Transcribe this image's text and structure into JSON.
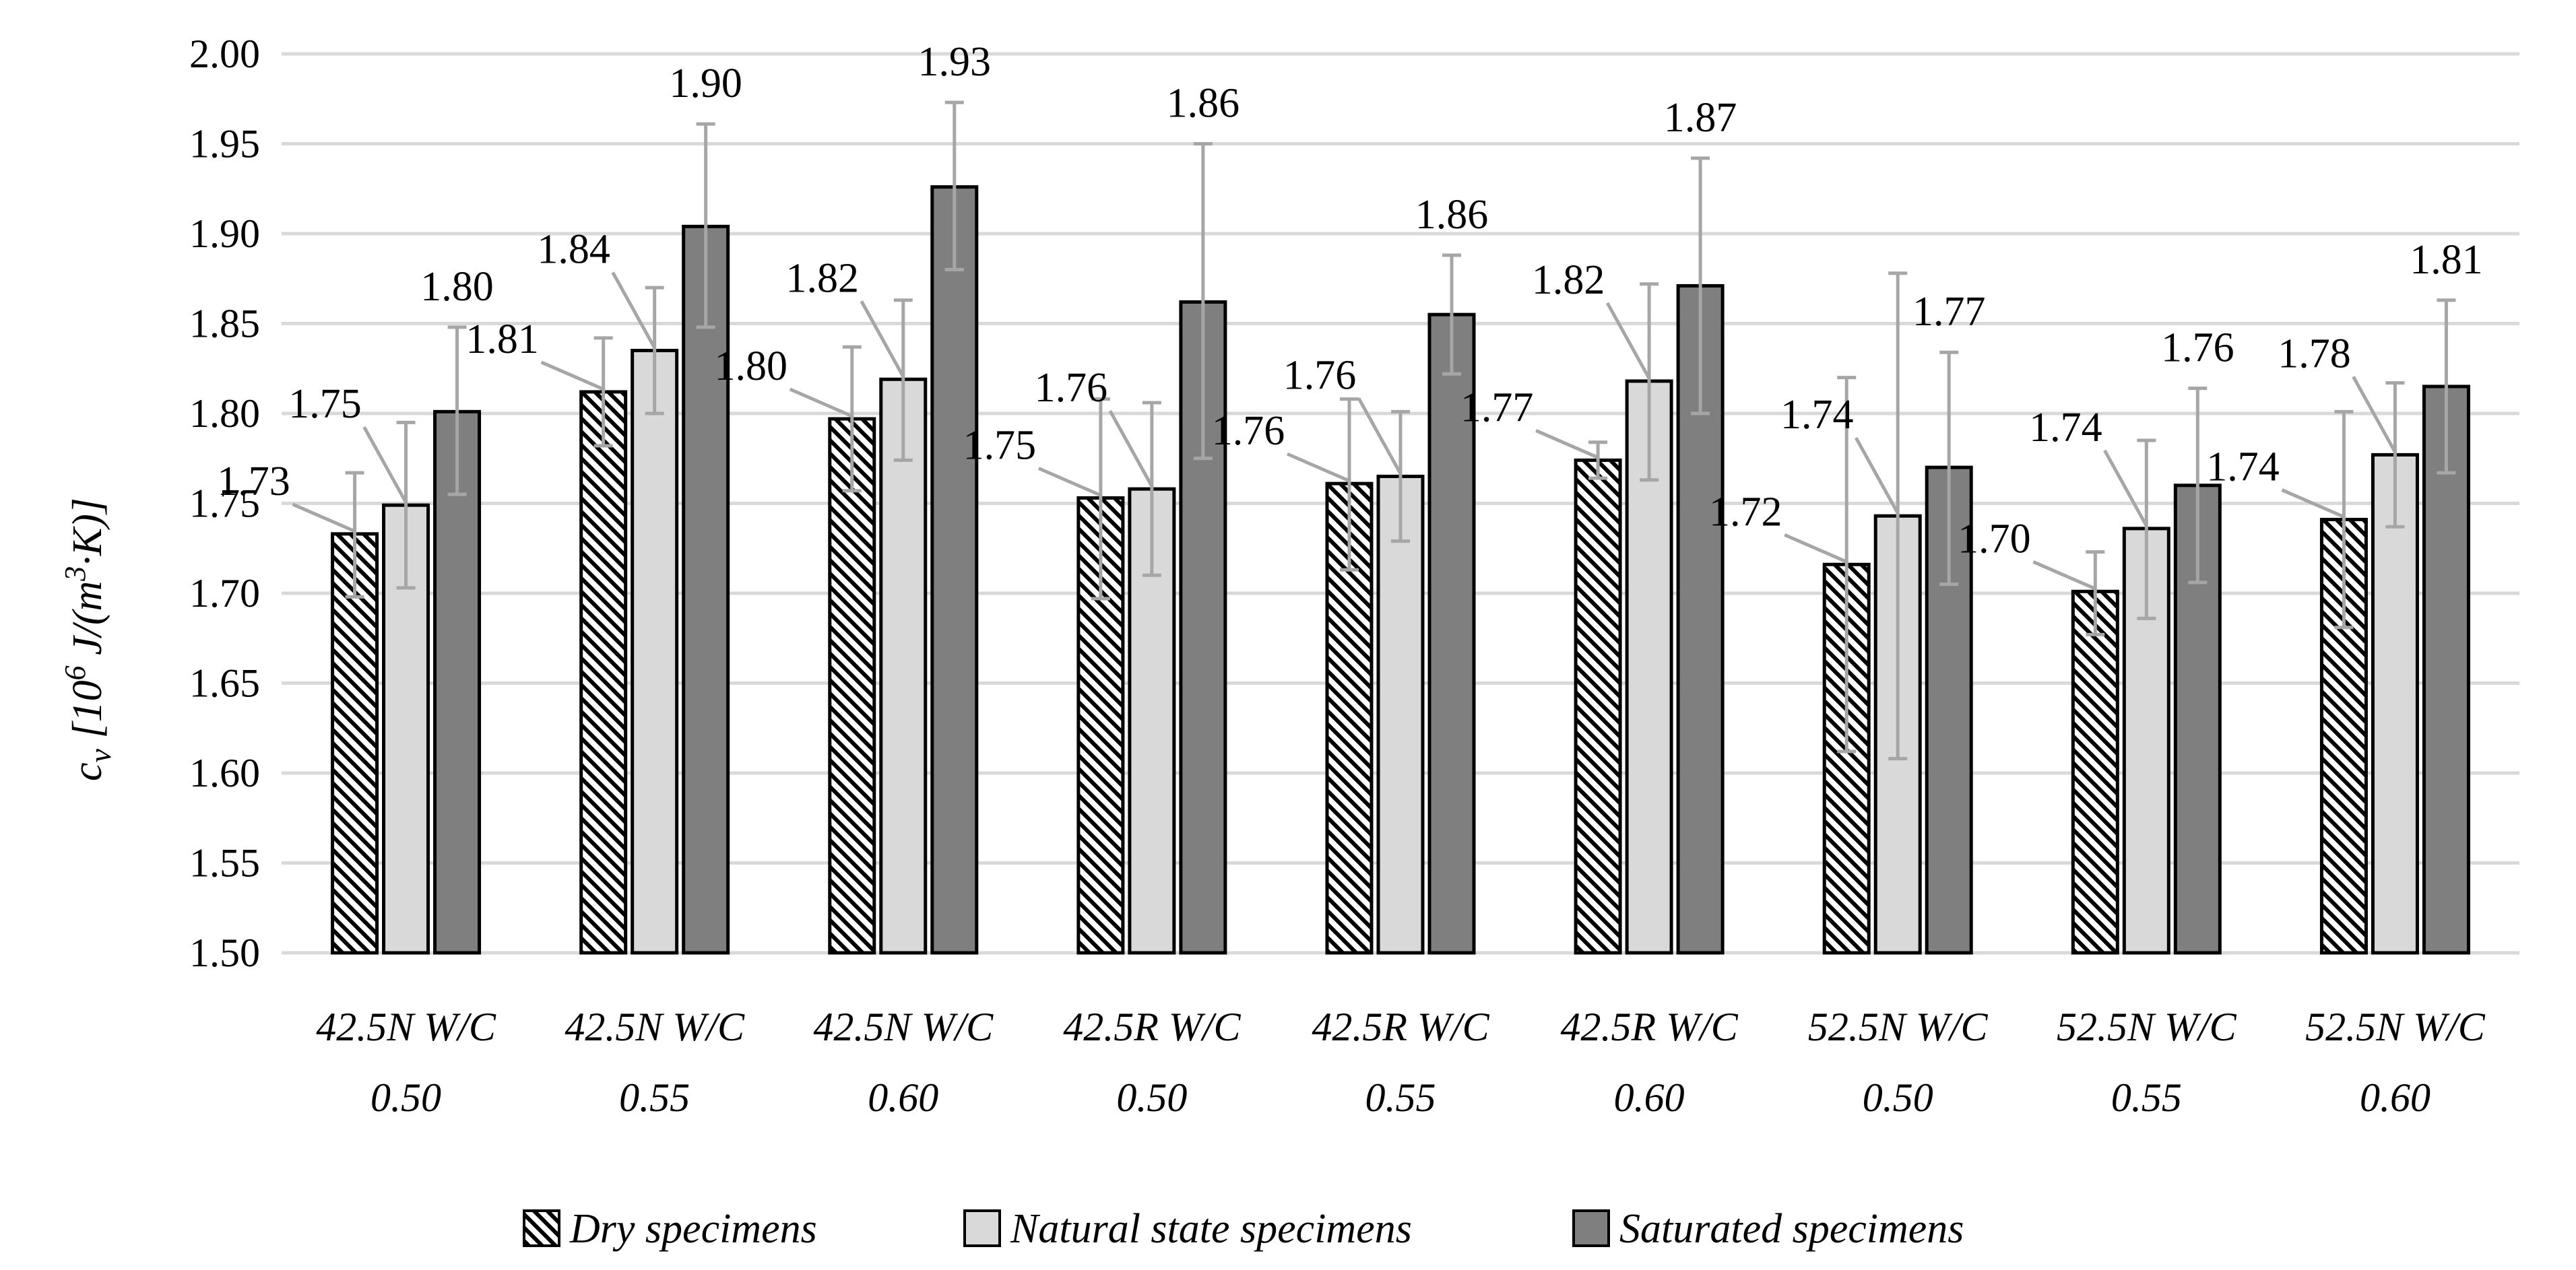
{
  "chart_data": {
    "type": "bar",
    "title": "",
    "xlabel": "",
    "ylabel": "c_v [10^6 J/(m^3·K)]",
    "ylabel_parts": {
      "symbol": "c",
      "subscript": "v",
      "open": "[10",
      "exp1": "6",
      "mid": " J/(m",
      "exp2": "3",
      "close": "·K)]"
    },
    "ylim": [
      1.5,
      2.0
    ],
    "yticks": [
      "1.50",
      "1.55",
      "1.60",
      "1.65",
      "1.70",
      "1.75",
      "1.80",
      "1.85",
      "1.90",
      "1.95",
      "2.00"
    ],
    "categories": [
      [
        "42.5N W/C",
        "0.50"
      ],
      [
        "42.5N W/C",
        "0.55"
      ],
      [
        "42.5N W/C",
        "0.60"
      ],
      [
        "42.5R W/C",
        "0.50"
      ],
      [
        "42.5R W/C",
        "0.55"
      ],
      [
        "42.5R W/C",
        "0.60"
      ],
      [
        "52.5N W/C",
        "0.50"
      ],
      [
        "52.5N W/C",
        "0.55"
      ],
      [
        "52.5N W/C",
        "0.60"
      ]
    ],
    "series": [
      {
        "name": "Dry specimens",
        "pattern": "hatched",
        "values": [
          1.733,
          1.812,
          1.797,
          1.753,
          1.761,
          1.774,
          1.716,
          1.701,
          1.741
        ],
        "err_low": [
          1.698,
          1.782,
          1.757,
          1.697,
          1.713,
          1.764,
          1.612,
          1.677,
          1.681
        ],
        "err_high": [
          1.767,
          1.842,
          1.837,
          1.808,
          1.808,
          1.784,
          1.82,
          1.723,
          1.801
        ],
        "labels": [
          "1.73",
          "1.81",
          "1.80",
          "1.75",
          "1.76",
          "1.77",
          "1.72",
          "1.70",
          "1.74"
        ]
      },
      {
        "name": "Natural state specimens",
        "pattern": "light",
        "values": [
          1.749,
          1.835,
          1.819,
          1.758,
          1.765,
          1.818,
          1.743,
          1.736,
          1.777
        ],
        "err_low": [
          1.703,
          1.8,
          1.774,
          1.71,
          1.729,
          1.763,
          1.608,
          1.686,
          1.737
        ],
        "err_high": [
          1.795,
          1.87,
          1.863,
          1.806,
          1.801,
          1.872,
          1.878,
          1.785,
          1.817
        ],
        "labels": [
          "1.75",
          "1.84",
          "1.82",
          "1.76",
          "1.76",
          "1.82",
          "1.74",
          "1.74",
          "1.78"
        ]
      },
      {
        "name": "Saturated specimens",
        "pattern": "dark",
        "values": [
          1.801,
          1.904,
          1.926,
          1.862,
          1.855,
          1.871,
          1.77,
          1.76,
          1.815
        ],
        "err_low": [
          1.755,
          1.848,
          1.88,
          1.775,
          1.822,
          1.8,
          1.705,
          1.706,
          1.767
        ],
        "err_high": [
          1.848,
          1.961,
          1.973,
          1.95,
          1.888,
          1.942,
          1.834,
          1.814,
          1.863
        ],
        "labels": [
          "1.80",
          "1.90",
          "1.93",
          "1.86",
          "1.86",
          "1.87",
          "1.77",
          "1.76",
          "1.81"
        ]
      }
    ],
    "colors": {
      "grid": "#d9d9d9",
      "light": "#d9d9d9",
      "dark": "#7f7f7f",
      "hatch": "#000000",
      "error": "#a6a6a6",
      "leader": "#a6a6a6"
    },
    "legend_position": "bottom",
    "grid": true
  }
}
